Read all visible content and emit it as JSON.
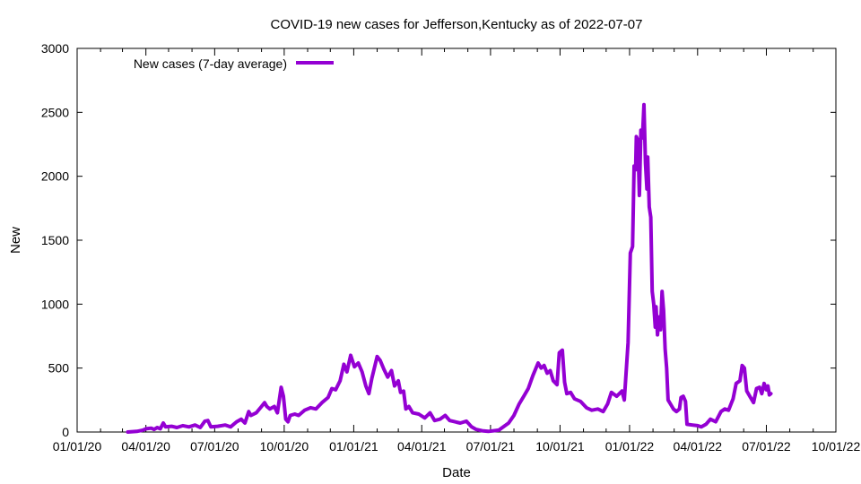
{
  "chart_data": {
    "type": "line",
    "title": "COVID-19 new cases for Jefferson,Kentucky as of 2022-07-07",
    "xlabel": "Date",
    "ylabel": "New",
    "x_ticks": [
      "01/01/20",
      "04/01/20",
      "07/01/20",
      "10/01/20",
      "01/01/21",
      "04/01/21",
      "07/01/21",
      "10/01/21",
      "01/01/22",
      "04/01/22",
      "07/01/22",
      "10/01/22"
    ],
    "y_ticks": [
      "0",
      "500",
      "1000",
      "1500",
      "2000",
      "2500",
      "3000"
    ],
    "xlim": [
      "2020-01-01",
      "2022-10-01"
    ],
    "ylim": [
      0,
      3000
    ],
    "grid": false,
    "legend_position": "top-left",
    "series": [
      {
        "name": "New cases (7-day average)",
        "color": "#9400d3",
        "points": [
          [
            "2020-03-08",
            0
          ],
          [
            "2020-03-20",
            5
          ],
          [
            "2020-03-28",
            15
          ],
          [
            "2020-04-01",
            25
          ],
          [
            "2020-04-08",
            30
          ],
          [
            "2020-04-12",
            20
          ],
          [
            "2020-04-16",
            35
          ],
          [
            "2020-04-20",
            25
          ],
          [
            "2020-04-24",
            70
          ],
          [
            "2020-04-27",
            40
          ],
          [
            "2020-05-05",
            45
          ],
          [
            "2020-05-12",
            35
          ],
          [
            "2020-05-20",
            50
          ],
          [
            "2020-05-28",
            40
          ],
          [
            "2020-06-05",
            55
          ],
          [
            "2020-06-12",
            35
          ],
          [
            "2020-06-18",
            85
          ],
          [
            "2020-06-22",
            90
          ],
          [
            "2020-06-26",
            40
          ],
          [
            "2020-07-05",
            45
          ],
          [
            "2020-07-15",
            55
          ],
          [
            "2020-07-22",
            40
          ],
          [
            "2020-07-30",
            80
          ],
          [
            "2020-08-05",
            100
          ],
          [
            "2020-08-10",
            70
          ],
          [
            "2020-08-15",
            160
          ],
          [
            "2020-08-18",
            130
          ],
          [
            "2020-08-25",
            150
          ],
          [
            "2020-09-01",
            200
          ],
          [
            "2020-09-05",
            230
          ],
          [
            "2020-09-08",
            200
          ],
          [
            "2020-09-12",
            180
          ],
          [
            "2020-09-18",
            200
          ],
          [
            "2020-09-22",
            150
          ],
          [
            "2020-09-27",
            350
          ],
          [
            "2020-09-30",
            280
          ],
          [
            "2020-10-03",
            100
          ],
          [
            "2020-10-06",
            80
          ],
          [
            "2020-10-09",
            130
          ],
          [
            "2020-10-15",
            140
          ],
          [
            "2020-10-20",
            130
          ],
          [
            "2020-10-28",
            170
          ],
          [
            "2020-11-05",
            190
          ],
          [
            "2020-11-12",
            180
          ],
          [
            "2020-11-20",
            230
          ],
          [
            "2020-11-28",
            270
          ],
          [
            "2020-12-03",
            340
          ],
          [
            "2020-12-08",
            330
          ],
          [
            "2020-12-14",
            400
          ],
          [
            "2020-12-19",
            530
          ],
          [
            "2020-12-23",
            470
          ],
          [
            "2020-12-28",
            600
          ],
          [
            "2021-01-02",
            510
          ],
          [
            "2021-01-07",
            540
          ],
          [
            "2021-01-12",
            470
          ],
          [
            "2021-01-17",
            360
          ],
          [
            "2021-01-21",
            300
          ],
          [
            "2021-01-25",
            420
          ],
          [
            "2021-02-01",
            590
          ],
          [
            "2021-02-05",
            560
          ],
          [
            "2021-02-10",
            490
          ],
          [
            "2021-02-15",
            430
          ],
          [
            "2021-02-20",
            480
          ],
          [
            "2021-02-24",
            360
          ],
          [
            "2021-03-01",
            400
          ],
          [
            "2021-03-04",
            310
          ],
          [
            "2021-03-08",
            320
          ],
          [
            "2021-03-11",
            180
          ],
          [
            "2021-03-15",
            200
          ],
          [
            "2021-03-20",
            150
          ],
          [
            "2021-03-28",
            140
          ],
          [
            "2021-04-05",
            110
          ],
          [
            "2021-04-12",
            150
          ],
          [
            "2021-04-18",
            90
          ],
          [
            "2021-04-25",
            100
          ],
          [
            "2021-05-02",
            130
          ],
          [
            "2021-05-08",
            90
          ],
          [
            "2021-05-15",
            80
          ],
          [
            "2021-05-22",
            70
          ],
          [
            "2021-05-30",
            85
          ],
          [
            "2021-06-06",
            40
          ],
          [
            "2021-06-12",
            20
          ],
          [
            "2021-06-20",
            10
          ],
          [
            "2021-06-28",
            5
          ],
          [
            "2021-07-05",
            10
          ],
          [
            "2021-07-12",
            15
          ],
          [
            "2021-07-18",
            40
          ],
          [
            "2021-07-25",
            70
          ],
          [
            "2021-08-01",
            130
          ],
          [
            "2021-08-08",
            220
          ],
          [
            "2021-08-14",
            280
          ],
          [
            "2021-08-20",
            340
          ],
          [
            "2021-08-26",
            440
          ],
          [
            "2021-09-02",
            540
          ],
          [
            "2021-09-06",
            500
          ],
          [
            "2021-09-10",
            520
          ],
          [
            "2021-09-14",
            460
          ],
          [
            "2021-09-18",
            480
          ],
          [
            "2021-09-22",
            400
          ],
          [
            "2021-09-27",
            370
          ],
          [
            "2021-09-30",
            620
          ],
          [
            "2021-10-04",
            640
          ],
          [
            "2021-10-07",
            390
          ],
          [
            "2021-10-10",
            300
          ],
          [
            "2021-10-15",
            310
          ],
          [
            "2021-10-20",
            260
          ],
          [
            "2021-10-28",
            240
          ],
          [
            "2021-11-05",
            190
          ],
          [
            "2021-11-12",
            170
          ],
          [
            "2021-11-20",
            180
          ],
          [
            "2021-11-27",
            160
          ],
          [
            "2021-12-03",
            220
          ],
          [
            "2021-12-08",
            310
          ],
          [
            "2021-12-15",
            280
          ],
          [
            "2021-12-22",
            320
          ],
          [
            "2021-12-25",
            250
          ],
          [
            "2021-12-30",
            700
          ],
          [
            "2022-01-02",
            1400
          ],
          [
            "2022-01-05",
            1450
          ],
          [
            "2022-01-07",
            2080
          ],
          [
            "2022-01-09",
            2050
          ],
          [
            "2022-01-10",
            2310
          ],
          [
            "2022-01-12",
            2280
          ],
          [
            "2022-01-14",
            1850
          ],
          [
            "2022-01-16",
            2360
          ],
          [
            "2022-01-18",
            2300
          ],
          [
            "2022-01-20",
            2560
          ],
          [
            "2022-01-22",
            2100
          ],
          [
            "2022-01-24",
            1900
          ],
          [
            "2022-01-25",
            2150
          ],
          [
            "2022-01-27",
            1760
          ],
          [
            "2022-01-29",
            1680
          ],
          [
            "2022-01-31",
            1100
          ],
          [
            "2022-02-02",
            1000
          ],
          [
            "2022-02-04",
            820
          ],
          [
            "2022-02-05",
            980
          ],
          [
            "2022-02-07",
            760
          ],
          [
            "2022-02-09",
            900
          ],
          [
            "2022-02-11",
            800
          ],
          [
            "2022-02-13",
            1100
          ],
          [
            "2022-02-15",
            950
          ],
          [
            "2022-02-17",
            650
          ],
          [
            "2022-02-19",
            500
          ],
          [
            "2022-02-21",
            250
          ],
          [
            "2022-02-24",
            220
          ],
          [
            "2022-02-28",
            180
          ],
          [
            "2022-03-04",
            160
          ],
          [
            "2022-03-08",
            180
          ],
          [
            "2022-03-10",
            270
          ],
          [
            "2022-03-13",
            280
          ],
          [
            "2022-03-16",
            240
          ],
          [
            "2022-03-18",
            60
          ],
          [
            "2022-03-25",
            55
          ],
          [
            "2022-04-01",
            50
          ],
          [
            "2022-04-06",
            40
          ],
          [
            "2022-04-12",
            60
          ],
          [
            "2022-04-18",
            100
          ],
          [
            "2022-04-25",
            80
          ],
          [
            "2022-05-02",
            160
          ],
          [
            "2022-05-07",
            180
          ],
          [
            "2022-05-12",
            170
          ],
          [
            "2022-05-18",
            260
          ],
          [
            "2022-05-22",
            380
          ],
          [
            "2022-05-27",
            400
          ],
          [
            "2022-05-30",
            520
          ],
          [
            "2022-06-02",
            500
          ],
          [
            "2022-06-05",
            320
          ],
          [
            "2022-06-10",
            270
          ],
          [
            "2022-06-14",
            230
          ],
          [
            "2022-06-18",
            340
          ],
          [
            "2022-06-22",
            350
          ],
          [
            "2022-06-25",
            300
          ],
          [
            "2022-06-28",
            380
          ],
          [
            "2022-07-01",
            330
          ],
          [
            "2022-07-03",
            360
          ],
          [
            "2022-07-05",
            290
          ],
          [
            "2022-07-07",
            300
          ]
        ]
      }
    ]
  }
}
